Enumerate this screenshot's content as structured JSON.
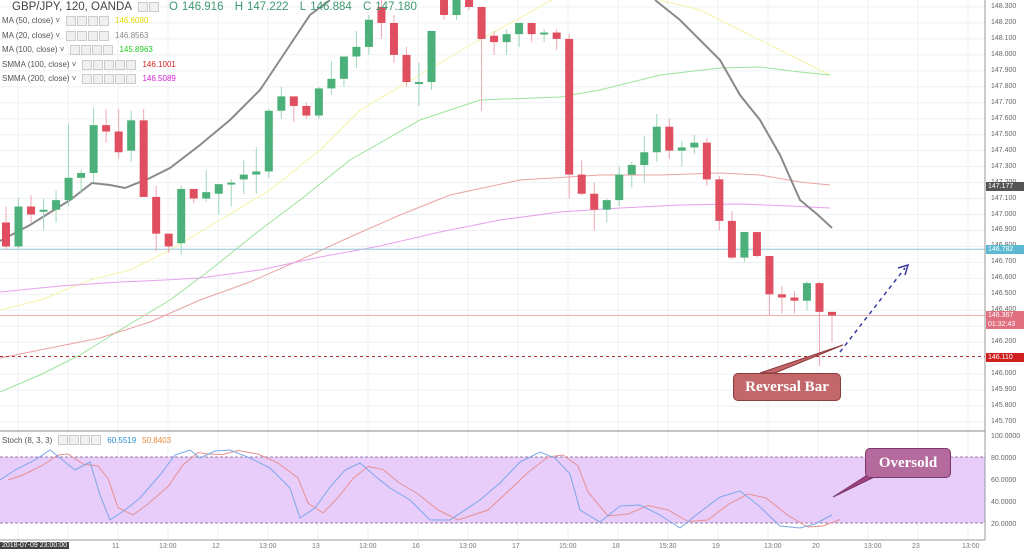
{
  "header": {
    "symbol": "GBP/JPY, 120, OANDA",
    "open_label": "O",
    "open": "146.916",
    "high_label": "H",
    "high": "147.222",
    "low_label": "L",
    "low": "146.884",
    "close_label": "C",
    "close": "147.180"
  },
  "indicators": [
    {
      "name": "MA (50, close)",
      "value": "146.6080",
      "color": "#e6d800"
    },
    {
      "name": "MA (20, close)",
      "value": "146.8563",
      "color": "#888888"
    },
    {
      "name": "MA (100, close)",
      "value": "145.8963",
      "color": "#22cc22"
    },
    {
      "name": "SMMA (100, close)",
      "value": "146.1001",
      "color": "#d02020"
    },
    {
      "name": "SMMA (200, close)",
      "value": "146.5089",
      "color": "#d020d0"
    }
  ],
  "stoch": {
    "name": "Stoch (8, 3, 3)",
    "k": "60.5519",
    "d": "50.8403",
    "k_color": "#2a8fd0",
    "d_color": "#e8883a"
  },
  "price_axis": {
    "labels": [
      "148.300",
      "148.200",
      "148.100",
      "148.000",
      "147.900",
      "147.800",
      "147.700",
      "147.600",
      "147.500",
      "147.400",
      "147.300",
      "147.200",
      "147.100",
      "147.000",
      "146.900",
      "146.800",
      "146.700",
      "146.600",
      "146.500",
      "146.400",
      "146.300",
      "146.200",
      "146.100",
      "146.000",
      "145.900",
      "145.800",
      "145.700"
    ],
    "current_price": "147.177",
    "blue_level": "146.782",
    "last_price": "146.367",
    "countdown": "01:32:43",
    "support_level": "146.110"
  },
  "stoch_axis": {
    "labels": [
      "100.0000",
      "80.0000",
      "60.0000",
      "40.0000",
      "20.0000"
    ]
  },
  "time_axis": {
    "cursor_label": "2018-07-09 23:00:00",
    "labels": [
      "13:00",
      "11",
      "13:00",
      "12",
      "13:00",
      "13",
      "13:00",
      "16",
      "13:00",
      "17",
      "15:00",
      "18",
      "15:30",
      "19",
      "13:00",
      "20",
      "13:00",
      "23",
      "13:00"
    ]
  },
  "annotations": {
    "reversal": "Reversal Bar",
    "oversold": "Oversold"
  },
  "chart_data": [
    {
      "type": "candlestick",
      "title": "GBP/JPY, 120, OANDA",
      "ylabel": "Price",
      "ylim": [
        145.65,
        148.35
      ],
      "x_ticks": [
        "13:00",
        "11",
        "13:00",
        "12",
        "13:00",
        "13",
        "13:00",
        "16",
        "13:00",
        "17",
        "15:00",
        "18",
        "15:30",
        "19",
        "13:00",
        "20",
        "13:00",
        "23",
        "13:00"
      ],
      "candles": [
        {
          "o": 146.95,
          "h": 147.05,
          "l": 146.78,
          "c": 146.8
        },
        {
          "o": 146.8,
          "h": 147.1,
          "l": 146.78,
          "c": 147.05
        },
        {
          "o": 147.05,
          "h": 147.12,
          "l": 146.95,
          "c": 147.0
        },
        {
          "o": 147.02,
          "h": 147.1,
          "l": 146.9,
          "c": 147.03
        },
        {
          "o": 147.03,
          "h": 147.15,
          "l": 146.95,
          "c": 147.09
        },
        {
          "o": 147.09,
          "h": 147.57,
          "l": 147.05,
          "c": 147.23
        },
        {
          "o": 147.23,
          "h": 147.28,
          "l": 147.13,
          "c": 147.26
        },
        {
          "o": 147.26,
          "h": 147.67,
          "l": 147.2,
          "c": 147.56
        },
        {
          "o": 147.56,
          "h": 147.66,
          "l": 147.45,
          "c": 147.52
        },
        {
          "o": 147.52,
          "h": 147.66,
          "l": 147.35,
          "c": 147.39
        },
        {
          "o": 147.4,
          "h": 147.65,
          "l": 147.33,
          "c": 147.59
        },
        {
          "o": 147.59,
          "h": 147.66,
          "l": 147.13,
          "c": 147.11
        },
        {
          "o": 147.11,
          "h": 147.18,
          "l": 146.77,
          "c": 146.88
        },
        {
          "o": 146.88,
          "h": 146.88,
          "l": 146.76,
          "c": 146.8
        },
        {
          "o": 146.82,
          "h": 147.18,
          "l": 146.75,
          "c": 147.16
        },
        {
          "o": 147.16,
          "h": 147.16,
          "l": 147.07,
          "c": 147.1
        },
        {
          "o": 147.1,
          "h": 147.28,
          "l": 147.08,
          "c": 147.14
        },
        {
          "o": 147.13,
          "h": 147.19,
          "l": 147.0,
          "c": 147.19
        },
        {
          "o": 147.19,
          "h": 147.22,
          "l": 147.05,
          "c": 147.2
        },
        {
          "o": 147.22,
          "h": 147.34,
          "l": 147.13,
          "c": 147.25
        },
        {
          "o": 147.25,
          "h": 147.42,
          "l": 147.13,
          "c": 147.27
        },
        {
          "o": 147.27,
          "h": 147.66,
          "l": 147.23,
          "c": 147.65
        },
        {
          "o": 147.65,
          "h": 147.8,
          "l": 147.6,
          "c": 147.74
        },
        {
          "o": 147.74,
          "h": 147.74,
          "l": 147.58,
          "c": 147.68
        },
        {
          "o": 147.68,
          "h": 147.7,
          "l": 147.6,
          "c": 147.62
        },
        {
          "o": 147.62,
          "h": 147.8,
          "l": 147.6,
          "c": 147.79
        },
        {
          "o": 147.79,
          "h": 147.96,
          "l": 147.75,
          "c": 147.85
        },
        {
          "o": 147.85,
          "h": 147.96,
          "l": 147.8,
          "c": 147.99
        },
        {
          "o": 147.99,
          "h": 148.15,
          "l": 147.92,
          "c": 148.05
        },
        {
          "o": 148.05,
          "h": 148.25,
          "l": 148.0,
          "c": 148.22
        },
        {
          "o": 148.3,
          "h": 148.35,
          "l": 148.1,
          "c": 148.2
        },
        {
          "o": 148.2,
          "h": 148.25,
          "l": 147.95,
          "c": 148.0
        },
        {
          "o": 148.0,
          "h": 148.05,
          "l": 147.8,
          "c": 147.83
        },
        {
          "o": 147.83,
          "h": 147.95,
          "l": 147.68,
          "c": 147.83
        },
        {
          "o": 147.83,
          "h": 148.15,
          "l": 147.78,
          "c": 148.15
        },
        {
          "o": 148.4,
          "h": 148.4,
          "l": 148.22,
          "c": 148.25
        },
        {
          "o": 148.25,
          "h": 148.4,
          "l": 148.22,
          "c": 148.38
        },
        {
          "o": 148.38,
          "h": 148.4,
          "l": 148.28,
          "c": 148.3
        },
        {
          "o": 148.3,
          "h": 148.3,
          "l": 147.65,
          "c": 148.1
        },
        {
          "o": 148.12,
          "h": 148.15,
          "l": 148.0,
          "c": 148.08
        },
        {
          "o": 148.08,
          "h": 148.16,
          "l": 148.0,
          "c": 148.13
        },
        {
          "o": 148.13,
          "h": 148.2,
          "l": 148.05,
          "c": 148.2
        },
        {
          "o": 148.2,
          "h": 148.2,
          "l": 148.08,
          "c": 148.13
        },
        {
          "o": 148.13,
          "h": 148.16,
          "l": 148.08,
          "c": 148.14
        },
        {
          "o": 148.14,
          "h": 148.16,
          "l": 148.03,
          "c": 148.1
        },
        {
          "o": 148.1,
          "h": 148.13,
          "l": 147.1,
          "c": 147.25
        },
        {
          "o": 147.25,
          "h": 147.34,
          "l": 147.12,
          "c": 147.13
        },
        {
          "o": 147.13,
          "h": 147.2,
          "l": 146.9,
          "c": 147.03
        },
        {
          "o": 147.03,
          "h": 147.1,
          "l": 146.95,
          "c": 147.09
        },
        {
          "o": 147.09,
          "h": 147.3,
          "l": 147.05,
          "c": 147.25
        },
        {
          "o": 147.25,
          "h": 147.33,
          "l": 147.17,
          "c": 147.31
        },
        {
          "o": 147.31,
          "h": 147.49,
          "l": 147.2,
          "c": 147.39
        },
        {
          "o": 147.39,
          "h": 147.63,
          "l": 147.33,
          "c": 147.55
        },
        {
          "o": 147.55,
          "h": 147.6,
          "l": 147.35,
          "c": 147.4
        },
        {
          "o": 147.4,
          "h": 147.46,
          "l": 147.3,
          "c": 147.42
        },
        {
          "o": 147.42,
          "h": 147.5,
          "l": 147.38,
          "c": 147.45
        },
        {
          "o": 147.45,
          "h": 147.48,
          "l": 147.18,
          "c": 147.22
        },
        {
          "o": 147.22,
          "h": 147.24,
          "l": 146.9,
          "c": 146.96
        },
        {
          "o": 146.96,
          "h": 147.02,
          "l": 146.72,
          "c": 146.73
        },
        {
          "o": 146.73,
          "h": 146.89,
          "l": 146.7,
          "c": 146.89
        },
        {
          "o": 146.89,
          "h": 146.89,
          "l": 146.73,
          "c": 146.74
        },
        {
          "o": 146.74,
          "h": 146.74,
          "l": 146.37,
          "c": 146.5
        },
        {
          "o": 146.5,
          "h": 146.55,
          "l": 146.38,
          "c": 146.48
        },
        {
          "o": 146.48,
          "h": 146.52,
          "l": 146.38,
          "c": 146.46
        },
        {
          "o": 146.46,
          "h": 146.58,
          "l": 146.4,
          "c": 146.57
        },
        {
          "o": 146.57,
          "h": 146.58,
          "l": 146.05,
          "c": 146.39
        },
        {
          "o": 146.39,
          "h": 146.39,
          "l": 146.2,
          "c": 146.367
        }
      ],
      "series": [
        {
          "name": "MA (50, close)",
          "value": 146.608,
          "color": "#f5f0a0"
        },
        {
          "name": "MA (20, close)",
          "value": 146.8563,
          "color": "#8a8a8a"
        },
        {
          "name": "MA (100, close)",
          "value": 145.8963,
          "color": "#9be39b"
        },
        {
          "name": "SMMA (100, close)",
          "value": 146.1001,
          "color": "#e8a0a0"
        },
        {
          "name": "SMMA (200, close)",
          "value": 146.5089,
          "color": "#e4a0ea"
        }
      ],
      "horizontal_lines": [
        {
          "value": 146.782,
          "color": "#8ec8d8",
          "style": "solid"
        },
        {
          "value": 146.367,
          "color": "#f0b0b0",
          "style": "solid"
        },
        {
          "value": 146.11,
          "color": "#b03030",
          "style": "dashed"
        }
      ],
      "annotations": [
        "Reversal Bar",
        "Oversold",
        "dashed blue arrow projecting upward"
      ]
    },
    {
      "type": "line",
      "title": "Stoch (8, 3, 3)",
      "ylim": [
        10,
        100
      ],
      "bands": {
        "upper": 80,
        "lower": 20
      },
      "series": [
        {
          "name": "%K",
          "last": 60.5519,
          "color": "#6aa8e8"
        },
        {
          "name": "%D",
          "last": 50.8403,
          "color": "#e88a8a"
        }
      ]
    }
  ]
}
